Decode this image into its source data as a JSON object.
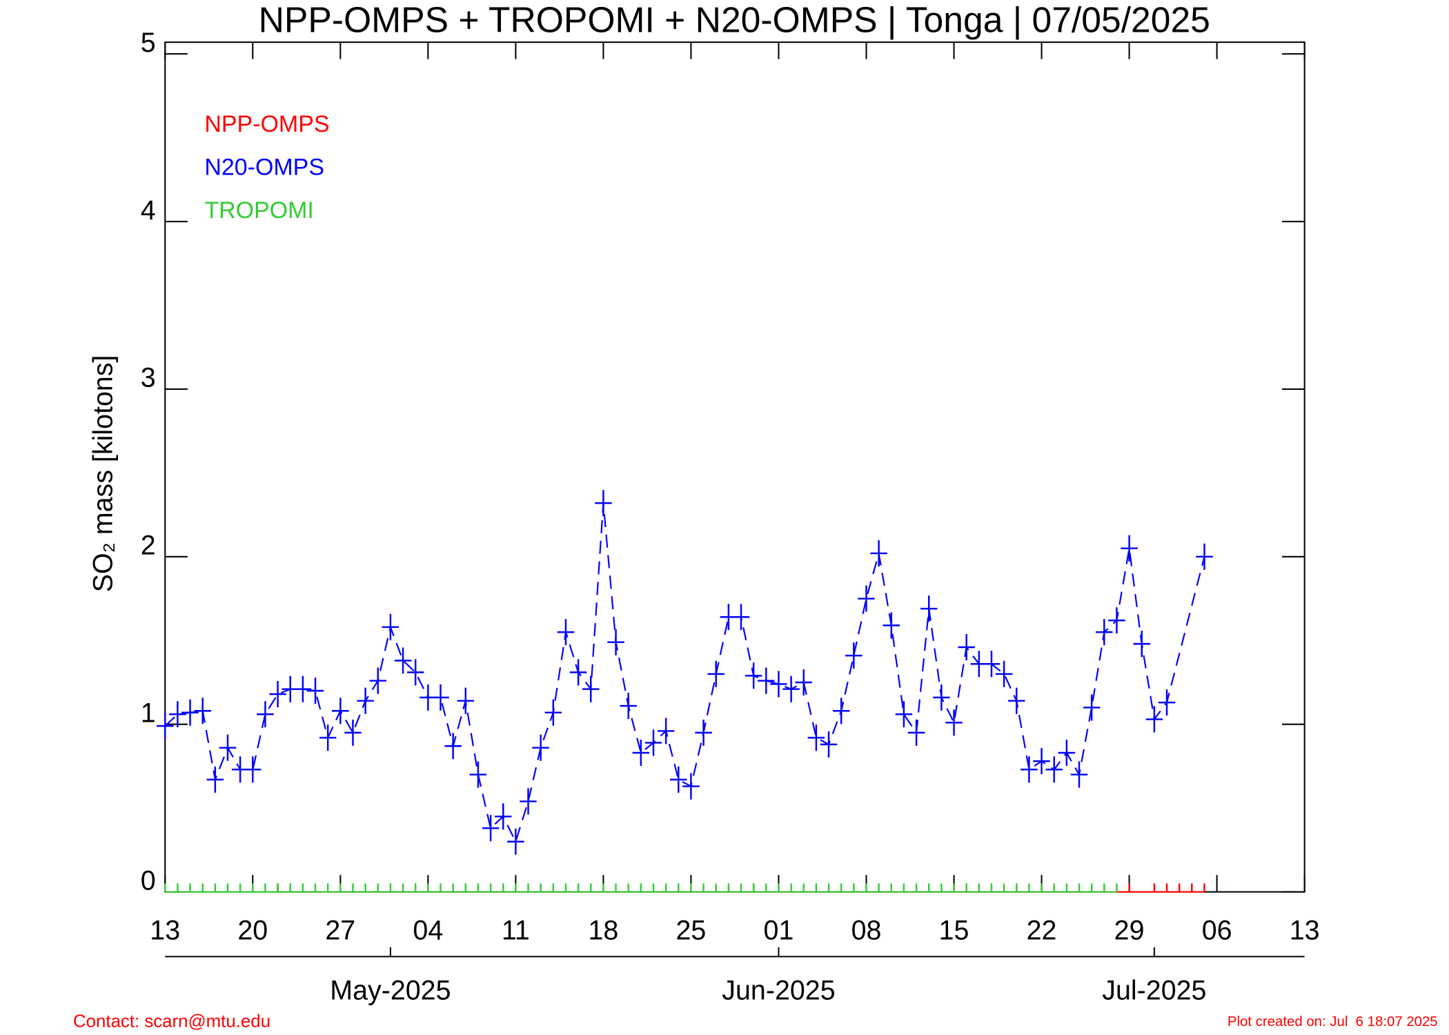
{
  "chart_data": {
    "type": "line",
    "title": "NPP-OMPS + TROPOMI + N20-OMPS | Tonga | 07/05/2025",
    "y_label": "SO₂ mass [kilotons]",
    "xlim": [
      "2025-04-13",
      "2025-07-13"
    ],
    "ylim": [
      0,
      5.07
    ],
    "yticks": [
      0,
      1,
      2,
      3,
      4,
      5
    ],
    "xticks": [
      {
        "value": "2025-04-13",
        "label": "13"
      },
      {
        "value": "2025-04-20",
        "label": "20"
      },
      {
        "value": "2025-04-27",
        "label": "27"
      },
      {
        "value": "2025-05-04",
        "label": "04"
      },
      {
        "value": "2025-05-11",
        "label": "11"
      },
      {
        "value": "2025-05-18",
        "label": "18"
      },
      {
        "value": "2025-05-25",
        "label": "25"
      },
      {
        "value": "2025-06-01",
        "label": "01"
      },
      {
        "value": "2025-06-08",
        "label": "08"
      },
      {
        "value": "2025-06-15",
        "label": "15"
      },
      {
        "value": "2025-06-22",
        "label": "22"
      },
      {
        "value": "2025-06-29",
        "label": "29"
      },
      {
        "value": "2025-07-06",
        "label": "06"
      },
      {
        "value": "2025-07-13",
        "label": "13"
      }
    ],
    "month_ticks": [
      {
        "value": "2025-05-01",
        "label": "May-2025"
      },
      {
        "value": "2025-06-01",
        "label": "Jun-2025"
      },
      {
        "value": "2025-07-01",
        "label": "Jul-2025"
      }
    ],
    "legend": "upper left",
    "series": [
      {
        "name": "NPP-OMPS",
        "color": "#ff0000",
        "dashed": false,
        "x": [
          "2025-04-22",
          "2025-05-30",
          "2025-06-15",
          "2025-06-22",
          "2025-06-29",
          "2025-07-01",
          "2025-07-02",
          "2025-07-03",
          "2025-07-04",
          "2025-07-05"
        ],
        "values": [
          0,
          0,
          0,
          0,
          0,
          0,
          0,
          0,
          0,
          0
        ]
      },
      {
        "name": "N20-OMPS",
        "color": "#0000ff",
        "dashed": true,
        "x": [
          "2025-04-13",
          "2025-04-14",
          "2025-04-15",
          "2025-04-16",
          "2025-04-17",
          "2025-04-18",
          "2025-04-19",
          "2025-04-20",
          "2025-04-21",
          "2025-04-22",
          "2025-04-23",
          "2025-04-24",
          "2025-04-25",
          "2025-04-26",
          "2025-04-27",
          "2025-04-28",
          "2025-04-29",
          "2025-04-30",
          "2025-05-01",
          "2025-05-02",
          "2025-05-03",
          "2025-05-04",
          "2025-05-05",
          "2025-05-06",
          "2025-05-07",
          "2025-05-08",
          "2025-05-09",
          "2025-05-10",
          "2025-05-11",
          "2025-05-12",
          "2025-05-13",
          "2025-05-14",
          "2025-05-15",
          "2025-05-16",
          "2025-05-17",
          "2025-05-18",
          "2025-05-19",
          "2025-05-20",
          "2025-05-21",
          "2025-05-22",
          "2025-05-23",
          "2025-05-24",
          "2025-05-25",
          "2025-05-26",
          "2025-05-27",
          "2025-05-28",
          "2025-05-29",
          "2025-05-30",
          "2025-05-31",
          "2025-06-01",
          "2025-06-02",
          "2025-06-03",
          "2025-06-04",
          "2025-06-05",
          "2025-06-06",
          "2025-06-07",
          "2025-06-08",
          "2025-06-09",
          "2025-06-10",
          "2025-06-11",
          "2025-06-12",
          "2025-06-13",
          "2025-06-14",
          "2025-06-15",
          "2025-06-16",
          "2025-06-17",
          "2025-06-18",
          "2025-06-19",
          "2025-06-20",
          "2025-06-21",
          "2025-06-22",
          "2025-06-23",
          "2025-06-24",
          "2025-06-25",
          "2025-06-26",
          "2025-06-27",
          "2025-06-28",
          "2025-06-29",
          "2025-06-30",
          "2025-07-01",
          "2025-07-02",
          "2025-07-05"
        ],
        "values": [
          0.99,
          1.06,
          1.07,
          1.08,
          0.67,
          0.86,
          0.73,
          0.73,
          1.06,
          1.18,
          1.21,
          1.21,
          1.2,
          0.92,
          1.08,
          0.95,
          1.14,
          1.26,
          1.58,
          1.38,
          1.31,
          1.16,
          1.16,
          0.87,
          1.14,
          0.7,
          0.38,
          0.45,
          0.3,
          0.54,
          0.86,
          1.07,
          1.55,
          1.31,
          1.21,
          2.32,
          1.49,
          1.11,
          0.83,
          0.89,
          0.96,
          0.67,
          0.63,
          0.95,
          1.3,
          1.64,
          1.64,
          1.29,
          1.26,
          1.24,
          1.21,
          1.25,
          0.92,
          0.88,
          1.08,
          1.41,
          1.75,
          2.02,
          1.59,
          1.06,
          0.95,
          1.69,
          1.16,
          1.01,
          1.46,
          1.36,
          1.36,
          1.3,
          1.14,
          0.73,
          0.78,
          0.73,
          0.83,
          0.7,
          1.1,
          1.55,
          1.62,
          2.05,
          1.48,
          1.03,
          1.13,
          2.0
        ]
      },
      {
        "name": "TROPOMI",
        "color": "#33cc33",
        "dashed": false,
        "x": [
          "2025-04-13",
          "2025-04-14",
          "2025-04-15",
          "2025-04-16",
          "2025-04-17",
          "2025-04-18",
          "2025-04-19",
          "2025-04-20",
          "2025-04-21",
          "2025-04-22",
          "2025-04-23",
          "2025-04-24",
          "2025-04-25",
          "2025-04-26",
          "2025-04-27",
          "2025-04-28",
          "2025-04-29",
          "2025-04-30",
          "2025-05-01",
          "2025-05-02",
          "2025-05-03",
          "2025-05-04",
          "2025-05-05",
          "2025-05-06",
          "2025-05-07",
          "2025-05-08",
          "2025-05-09",
          "2025-05-10",
          "2025-05-11",
          "2025-05-12",
          "2025-05-13",
          "2025-05-14",
          "2025-05-15",
          "2025-05-16",
          "2025-05-17",
          "2025-05-18",
          "2025-05-19",
          "2025-05-20",
          "2025-05-21",
          "2025-05-22",
          "2025-05-23",
          "2025-05-24",
          "2025-05-25",
          "2025-05-26",
          "2025-05-27",
          "2025-05-28",
          "2025-05-29",
          "2025-05-30",
          "2025-05-31",
          "2025-06-01",
          "2025-06-02",
          "2025-06-03",
          "2025-06-04",
          "2025-06-05",
          "2025-06-06",
          "2025-06-07",
          "2025-06-08",
          "2025-06-09",
          "2025-06-10",
          "2025-06-11",
          "2025-06-12",
          "2025-06-13",
          "2025-06-14",
          "2025-06-15",
          "2025-06-16",
          "2025-06-17",
          "2025-06-18",
          "2025-06-19",
          "2025-06-20",
          "2025-06-21",
          "2025-06-22",
          "2025-06-23",
          "2025-06-24",
          "2025-06-25",
          "2025-06-26",
          "2025-06-27",
          "2025-06-28"
        ],
        "values": [
          0,
          0,
          0,
          0,
          0,
          0,
          0,
          0,
          0,
          0,
          0,
          0,
          0,
          0,
          0,
          0,
          0,
          0,
          0,
          0,
          0,
          0,
          0,
          0,
          0,
          0,
          0,
          0,
          0,
          0,
          0,
          0,
          0,
          0,
          0,
          0,
          0,
          0,
          0,
          0,
          0,
          0,
          0,
          0,
          0,
          0,
          0,
          0,
          0,
          0,
          0,
          0,
          0,
          0,
          0,
          0,
          0,
          0,
          0,
          0,
          0,
          0,
          0,
          0,
          0,
          0,
          0,
          0,
          0,
          0,
          0,
          0,
          0,
          0,
          0,
          0,
          0
        ]
      }
    ],
    "contact": "Contact: scarn@mtu.edu",
    "created": "Plot created on: Jul  6 18:07 2025"
  }
}
